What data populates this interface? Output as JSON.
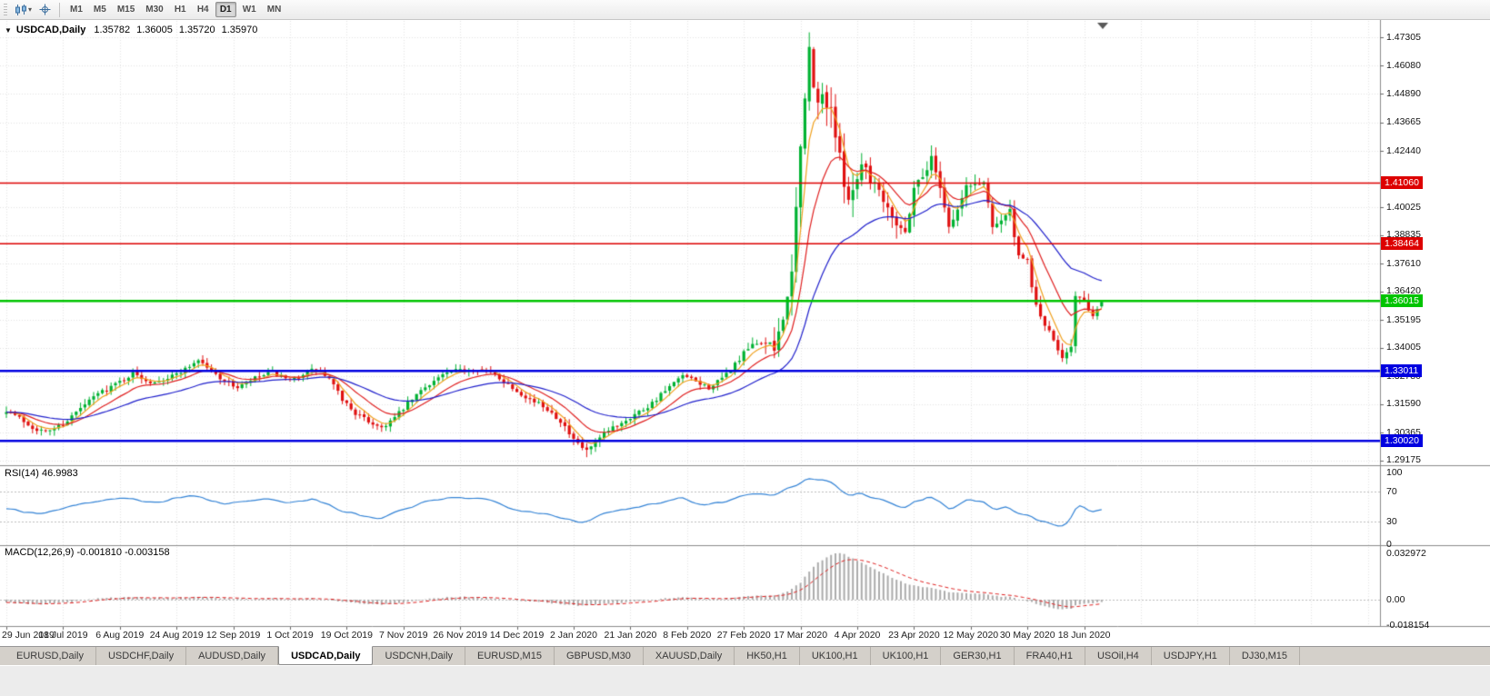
{
  "toolbar": {
    "timeframes": [
      "M1",
      "M5",
      "M15",
      "M30",
      "H1",
      "H4",
      "D1",
      "W1",
      "MN"
    ],
    "active_timeframe": "D1",
    "icons": [
      "chart-type-icon",
      "crosshair-icon"
    ]
  },
  "title": {
    "symbol": "USDCAD,Daily",
    "open": "1.35782",
    "high": "1.36005",
    "low": "1.35720",
    "close": "1.35970"
  },
  "tabs": {
    "items": [
      "EURUSD,Daily",
      "USDCHF,Daily",
      "AUDUSD,Daily",
      "USDCAD,Daily",
      "USDCNH,Daily",
      "EURUSD,M15",
      "GBPUSD,M30",
      "XAUUSD,Daily",
      "HK50,H1",
      "UK100,H1",
      "UK100,H1",
      "GER30,H1",
      "FRA40,H1",
      "USOil,H4",
      "USDJPY,H1",
      "DJ30,M15"
    ],
    "active_index": 3
  },
  "colors": {
    "up": "#00B232",
    "down": "#E01010",
    "grid": "#E4E4E4",
    "panel_border": "#8C8C8C",
    "background": "#FFFFFF",
    "shift_marker": "#5A5A5A"
  },
  "chart_data": {
    "type": "candlestick",
    "symbol": "USDCAD",
    "period": "Daily",
    "current_bar": {
      "open": 1.35782,
      "high": 1.36005,
      "low": 1.3572,
      "close": 1.3597
    },
    "bars_count": 252,
    "bars_per_label": 13,
    "x_labels": [
      "29 Jun 2019",
      "18 Jul 2019",
      "6 Aug 2019",
      "24 Aug 2019",
      "12 Sep 2019",
      "1 Oct 2019",
      "19 Oct 2019",
      "7 Nov 2019",
      "26 Nov 2019",
      "14 Dec 2019",
      "2 Jan 2020",
      "21 Jan 2020",
      "8 Feb 2020",
      "27 Feb 2020",
      "17 Mar 2020",
      "4 Apr 2020",
      "23 Apr 2020",
      "12 May 2020",
      "30 May 2020",
      "18 Jun 2020"
    ],
    "price_axis": {
      "ticks": [
        {
          "label": "1.47305",
          "price": 1.47305
        },
        {
          "label": "1.46080",
          "price": 1.4608
        },
        {
          "label": "1.44890",
          "price": 1.4489
        },
        {
          "label": "1.43665",
          "price": 1.43665
        },
        {
          "label": "1.42440",
          "price": 1.4244
        },
        {
          "label": "1.40025",
          "price": 1.40025
        },
        {
          "label": "1.38835",
          "price": 1.38835
        },
        {
          "label": "1.37610",
          "price": 1.3761
        },
        {
          "label": "1.36420",
          "price": 1.3642
        },
        {
          "label": "1.35195",
          "price": 1.35195
        },
        {
          "label": "1.34005",
          "price": 1.34005
        },
        {
          "label": "1.32780",
          "price": 1.3278
        },
        {
          "label": "1.31590",
          "price": 1.3159
        },
        {
          "label": "1.30365",
          "price": 1.30365
        },
        {
          "label": "1.29175",
          "price": 1.29175
        }
      ]
    },
    "horizontal_lines": [
      {
        "label": "1.41060",
        "price": 1.4106,
        "color": "#DD0000",
        "width": 1.5
      },
      {
        "label": "1.38464",
        "price": 1.38464,
        "color": "#DD0000",
        "width": 1.5
      },
      {
        "label": "1.36015",
        "price": 1.36015,
        "color": "#00C400",
        "width": 2.5
      },
      {
        "label": "1.33011",
        "price": 1.33011,
        "color": "#0000E0",
        "width": 2.5
      },
      {
        "label": "1.30020",
        "price": 1.3002,
        "color": "#0000E0",
        "width": 2.5
      }
    ],
    "moving_averages": [
      {
        "type": "EMA",
        "period": 5,
        "color": "#F0A11E"
      },
      {
        "type": "EMA",
        "period": 13,
        "color": "#E02020"
      },
      {
        "type": "EMA",
        "period": 34,
        "color": "#2020CC"
      }
    ],
    "close_anchors": [
      [
        0,
        1.3135
      ],
      [
        3,
        1.31
      ],
      [
        6,
        1.306
      ],
      [
        9,
        1.304
      ],
      [
        13,
        1.3075
      ],
      [
        17,
        1.314
      ],
      [
        21,
        1.3205
      ],
      [
        25,
        1.3245
      ],
      [
        29,
        1.329
      ],
      [
        33,
        1.3255
      ],
      [
        37,
        1.327
      ],
      [
        41,
        1.331
      ],
      [
        44,
        1.335
      ],
      [
        47,
        1.33
      ],
      [
        50,
        1.326
      ],
      [
        53,
        1.323
      ],
      [
        57,
        1.327
      ],
      [
        61,
        1.3295
      ],
      [
        65,
        1.3255
      ],
      [
        68,
        1.329
      ],
      [
        71,
        1.331
      ],
      [
        74,
        1.3265
      ],
      [
        77,
        1.318
      ],
      [
        80,
        1.312
      ],
      [
        83,
        1.3085
      ],
      [
        86,
        1.306
      ],
      [
        89,
        1.31
      ],
      [
        92,
        1.316
      ],
      [
        96,
        1.3235
      ],
      [
        100,
        1.3285
      ],
      [
        104,
        1.3305
      ],
      [
        108,
        1.3315
      ],
      [
        112,
        1.3285
      ],
      [
        116,
        1.323
      ],
      [
        120,
        1.318
      ],
      [
        124,
        1.314
      ],
      [
        127,
        1.309
      ],
      [
        130,
        1.3
      ],
      [
        133,
        1.2958
      ],
      [
        136,
        1.301
      ],
      [
        139,
        1.306
      ],
      [
        143,
        1.3105
      ],
      [
        147,
        1.315
      ],
      [
        151,
        1.3215
      ],
      [
        155,
        1.328
      ],
      [
        158,
        1.3255
      ],
      [
        161,
        1.323
      ],
      [
        164,
        1.3265
      ],
      [
        167,
        1.333
      ],
      [
        170,
        1.3395
      ],
      [
        173,
        1.343
      ],
      [
        176,
        1.339
      ],
      [
        178,
        1.355
      ],
      [
        180,
        1.369
      ],
      [
        181,
        1.399
      ],
      [
        182,
        1.424
      ],
      [
        183,
        1.45
      ],
      [
        184,
        1.466
      ],
      [
        185,
        1.451
      ],
      [
        186,
        1.443
      ],
      [
        187,
        1.448
      ],
      [
        189,
        1.443
      ],
      [
        191,
        1.42
      ],
      [
        193,
        1.405
      ],
      [
        195,
        1.412
      ],
      [
        196,
        1.421
      ],
      [
        198,
        1.413
      ],
      [
        200,
        1.408
      ],
      [
        202,
        1.401
      ],
      [
        204,
        1.394
      ],
      [
        206,
        1.389
      ],
      [
        208,
        1.409
      ],
      [
        210,
        1.414
      ],
      [
        212,
        1.421
      ],
      [
        214,
        1.41
      ],
      [
        216,
        1.392
      ],
      [
        218,
        1.399
      ],
      [
        220,
        1.409
      ],
      [
        222,
        1.41
      ],
      [
        224,
        1.411
      ],
      [
        226,
        1.393
      ],
      [
        228,
        1.395
      ],
      [
        230,
        1.3985
      ],
      [
        232,
        1.378
      ],
      [
        234,
        1.377
      ],
      [
        236,
        1.3575
      ],
      [
        238,
        1.35
      ],
      [
        240,
        1.3425
      ],
      [
        242,
        1.3365
      ],
      [
        244,
        1.3415
      ],
      [
        245,
        1.362
      ],
      [
        247,
        1.36
      ],
      [
        248,
        1.355
      ],
      [
        249,
        1.3545
      ],
      [
        250,
        1.3565
      ],
      [
        251,
        1.3597
      ]
    ],
    "volatility_anchors": [
      [
        0,
        0.0045
      ],
      [
        60,
        0.004
      ],
      [
        80,
        0.0045
      ],
      [
        120,
        0.004
      ],
      [
        130,
        0.0055
      ],
      [
        160,
        0.004
      ],
      [
        172,
        0.0065
      ],
      [
        178,
        0.015
      ],
      [
        184,
        0.021
      ],
      [
        190,
        0.017
      ],
      [
        196,
        0.013
      ],
      [
        205,
        0.01
      ],
      [
        215,
        0.0085
      ],
      [
        225,
        0.0075
      ],
      [
        235,
        0.0075
      ],
      [
        245,
        0.006
      ],
      [
        251,
        0.004
      ]
    ],
    "rsi": {
      "label": "RSI(14)",
      "value": "46.9983",
      "color": "#3383D6",
      "levels": [
        {
          "label": "100",
          "value": 100
        },
        {
          "label": "70",
          "value": 70
        },
        {
          "label": "30",
          "value": 30
        },
        {
          "label": "0",
          "value": 0
        }
      ],
      "anchors": [
        [
          0,
          48
        ],
        [
          6,
          40
        ],
        [
          10,
          44
        ],
        [
          15,
          50
        ],
        [
          21,
          58
        ],
        [
          27,
          62
        ],
        [
          33,
          56
        ],
        [
          38,
          60
        ],
        [
          44,
          64
        ],
        [
          50,
          54
        ],
        [
          56,
          58
        ],
        [
          61,
          60
        ],
        [
          65,
          54
        ],
        [
          70,
          60
        ],
        [
          74,
          52
        ],
        [
          78,
          42
        ],
        [
          83,
          36
        ],
        [
          86,
          34
        ],
        [
          91,
          46
        ],
        [
          96,
          55
        ],
        [
          100,
          60
        ],
        [
          104,
          62
        ],
        [
          108,
          62
        ],
        [
          112,
          56
        ],
        [
          116,
          48
        ],
        [
          120,
          44
        ],
        [
          124,
          40
        ],
        [
          127,
          36
        ],
        [
          131,
          30
        ],
        [
          134,
          32
        ],
        [
          138,
          42
        ],
        [
          143,
          48
        ],
        [
          147,
          52
        ],
        [
          151,
          58
        ],
        [
          155,
          62
        ],
        [
          158,
          56
        ],
        [
          161,
          52
        ],
        [
          164,
          56
        ],
        [
          167,
          62
        ],
        [
          170,
          66
        ],
        [
          173,
          68
        ],
        [
          176,
          64
        ],
        [
          179,
          74
        ],
        [
          182,
          82
        ],
        [
          184,
          88
        ],
        [
          186,
          84
        ],
        [
          188,
          86
        ],
        [
          190,
          78
        ],
        [
          192,
          68
        ],
        [
          194,
          64
        ],
        [
          196,
          68
        ],
        [
          198,
          62
        ],
        [
          200,
          60
        ],
        [
          202,
          56
        ],
        [
          204,
          52
        ],
        [
          206,
          48
        ],
        [
          208,
          58
        ],
        [
          210,
          60
        ],
        [
          212,
          62
        ],
        [
          214,
          56
        ],
        [
          216,
          46
        ],
        [
          218,
          52
        ],
        [
          220,
          58
        ],
        [
          224,
          58
        ],
        [
          226,
          46
        ],
        [
          228,
          48
        ],
        [
          230,
          50
        ],
        [
          232,
          40
        ],
        [
          234,
          40
        ],
        [
          236,
          32
        ],
        [
          238,
          30
        ],
        [
          240,
          27
        ],
        [
          242,
          24
        ],
        [
          244,
          32
        ],
        [
          245,
          50
        ],
        [
          247,
          48
        ],
        [
          248,
          44
        ],
        [
          249,
          43
        ],
        [
          250,
          45
        ],
        [
          251,
          47
        ]
      ]
    },
    "macd": {
      "label": "MACD(12,26,9)",
      "value_main": "-0.001810",
      "value_signal": "-0.003158",
      "histogram_color": "#ABABAB",
      "signal_color": "#E02020",
      "axis_labels": [
        {
          "label": "0.032972",
          "value": 0.032972
        },
        {
          "label": "0.00",
          "value": 0
        },
        {
          "label": "-0.018154",
          "value": -0.018154
        }
      ],
      "anchors": [
        [
          0,
          -0.002
        ],
        [
          4,
          -0.0028
        ],
        [
          8,
          -0.0032
        ],
        [
          13,
          -0.0022
        ],
        [
          17,
          -0.0008
        ],
        [
          21,
          0.0008
        ],
        [
          27,
          0.0018
        ],
        [
          33,
          0.0015
        ],
        [
          38,
          0.0012
        ],
        [
          44,
          0.002
        ],
        [
          50,
          0.001
        ],
        [
          56,
          0.0006
        ],
        [
          61,
          0.001
        ],
        [
          65,
          0.0004
        ],
        [
          70,
          0.0008
        ],
        [
          74,
          0.0
        ],
        [
          78,
          -0.0018
        ],
        [
          83,
          -0.003
        ],
        [
          86,
          -0.0036
        ],
        [
          91,
          -0.002
        ],
        [
          96,
          0.0002
        ],
        [
          100,
          0.0015
        ],
        [
          104,
          0.002
        ],
        [
          108,
          0.0018
        ],
        [
          112,
          0.001
        ],
        [
          116,
          -0.0002
        ],
        [
          120,
          -0.0012
        ],
        [
          124,
          -0.002
        ],
        [
          127,
          -0.003
        ],
        [
          131,
          -0.0042
        ],
        [
          134,
          -0.004
        ],
        [
          138,
          -0.0028
        ],
        [
          143,
          -0.0015
        ],
        [
          147,
          -0.0005
        ],
        [
          151,
          0.0008
        ],
        [
          155,
          0.0016
        ],
        [
          158,
          0.0012
        ],
        [
          161,
          0.0006
        ],
        [
          164,
          0.0008
        ],
        [
          167,
          0.0016
        ],
        [
          170,
          0.0024
        ],
        [
          173,
          0.003
        ],
        [
          176,
          0.0028
        ],
        [
          179,
          0.006
        ],
        [
          182,
          0.012
        ],
        [
          184,
          0.02
        ],
        [
          186,
          0.026
        ],
        [
          188,
          0.03
        ],
        [
          190,
          0.033
        ],
        [
          192,
          0.032
        ],
        [
          194,
          0.029
        ],
        [
          196,
          0.026
        ],
        [
          198,
          0.023
        ],
        [
          200,
          0.02
        ],
        [
          202,
          0.017
        ],
        [
          204,
          0.014
        ],
        [
          206,
          0.0115
        ],
        [
          208,
          0.01
        ],
        [
          210,
          0.009
        ],
        [
          212,
          0.0082
        ],
        [
          214,
          0.007
        ],
        [
          216,
          0.0055
        ],
        [
          218,
          0.0048
        ],
        [
          220,
          0.0045
        ],
        [
          222,
          0.0042
        ],
        [
          224,
          0.004
        ],
        [
          226,
          0.003
        ],
        [
          228,
          0.0022
        ],
        [
          230,
          0.0018
        ],
        [
          232,
          0.0002
        ],
        [
          234,
          -0.0008
        ],
        [
          236,
          -0.003
        ],
        [
          238,
          -0.0045
        ],
        [
          240,
          -0.006
        ],
        [
          242,
          -0.0068
        ],
        [
          244,
          -0.0062
        ],
        [
          245,
          -0.004
        ],
        [
          247,
          -0.0028
        ],
        [
          248,
          -0.0026
        ],
        [
          249,
          -0.0024
        ],
        [
          250,
          -0.002
        ],
        [
          251,
          -0.0018
        ]
      ]
    }
  }
}
